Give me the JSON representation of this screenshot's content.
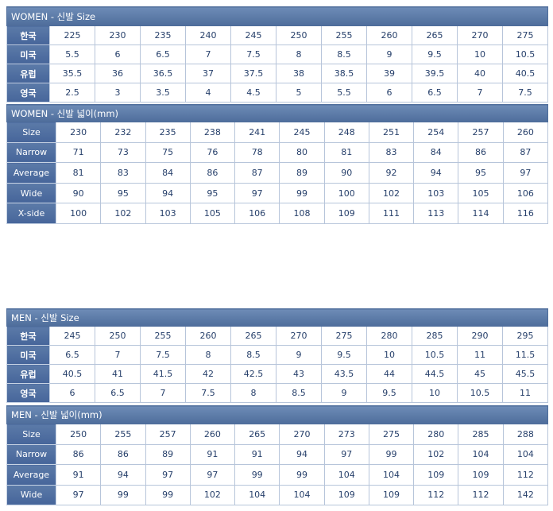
{
  "tables": [
    {
      "title": "WOMEN - 신발 Size",
      "rows": [
        {
          "label": "한국",
          "values": [
            "225",
            "230",
            "235",
            "240",
            "245",
            "250",
            "255",
            "260",
            "265",
            "270",
            "275"
          ]
        },
        {
          "label": "미국",
          "values": [
            "5.5",
            "6",
            "6.5",
            "7",
            "7.5",
            "8",
            "8.5",
            "9",
            "9.5",
            "10",
            "10.5"
          ]
        },
        {
          "label": "유럽",
          "values": [
            "35.5",
            "36",
            "36.5",
            "37",
            "37.5",
            "38",
            "38.5",
            "39",
            "39.5",
            "40",
            "40.5"
          ]
        },
        {
          "label": "영국",
          "values": [
            "2.5",
            "3",
            "3.5",
            "4",
            "4.5",
            "5",
            "5.5",
            "6",
            "6.5",
            "7",
            "7.5"
          ]
        }
      ]
    },
    {
      "title": "WOMEN - 신발 넓이(mm)",
      "rows": [
        {
          "label": "Size",
          "values": [
            "230",
            "232",
            "235",
            "238",
            "241",
            "245",
            "248",
            "251",
            "254",
            "257",
            "260"
          ]
        },
        {
          "label": "Narrow",
          "values": [
            "71",
            "73",
            "75",
            "76",
            "78",
            "80",
            "81",
            "83",
            "84",
            "86",
            "87"
          ]
        },
        {
          "label": "Average",
          "values": [
            "81",
            "83",
            "84",
            "86",
            "87",
            "89",
            "90",
            "92",
            "94",
            "95",
            "97"
          ]
        },
        {
          "label": "Wide",
          "values": [
            "90",
            "95",
            "94",
            "95",
            "97",
            "99",
            "100",
            "102",
            "103",
            "105",
            "106"
          ]
        },
        {
          "label": "X-side",
          "values": [
            "100",
            "102",
            "103",
            "105",
            "106",
            "108",
            "109",
            "111",
            "113",
            "114",
            "116"
          ]
        }
      ]
    },
    {
      "title": "MEN - 신발 Size",
      "rows": [
        {
          "label": "한국",
          "values": [
            "245",
            "250",
            "255",
            "260",
            "265",
            "270",
            "275",
            "280",
            "285",
            "290",
            "295"
          ]
        },
        {
          "label": "미국",
          "values": [
            "6.5",
            "7",
            "7.5",
            "8",
            "8.5",
            "9",
            "9.5",
            "10",
            "10.5",
            "11",
            "11.5"
          ]
        },
        {
          "label": "유럽",
          "values": [
            "40.5",
            "41",
            "41.5",
            "42",
            "42.5",
            "43",
            "43.5",
            "44",
            "44.5",
            "45",
            "45.5"
          ]
        },
        {
          "label": "영국",
          "values": [
            "6",
            "6.5",
            "7",
            "7.5",
            "8",
            "8.5",
            "9",
            "9.5",
            "10",
            "10.5",
            "11"
          ]
        }
      ]
    },
    {
      "title": "MEN - 신발 넓이(mm)",
      "rows": [
        {
          "label": "Size",
          "values": [
            "250",
            "255",
            "257",
            "260",
            "265",
            "270",
            "273",
            "275",
            "280",
            "285",
            "288"
          ]
        },
        {
          "label": "Narrow",
          "values": [
            "86",
            "86",
            "89",
            "91",
            "91",
            "94",
            "97",
            "99",
            "102",
            "104",
            "104"
          ]
        },
        {
          "label": "Average",
          "values": [
            "91",
            "94",
            "97",
            "97",
            "99",
            "99",
            "104",
            "104",
            "109",
            "109",
            "112"
          ]
        },
        {
          "label": "Wide",
          "values": [
            "97",
            "99",
            "99",
            "102",
            "104",
            "104",
            "109",
            "109",
            "112",
            "112",
            "142"
          ]
        }
      ]
    }
  ]
}
